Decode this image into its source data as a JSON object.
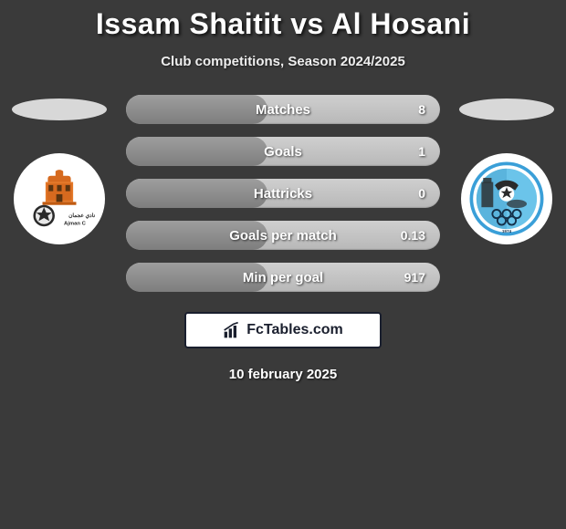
{
  "title": "Issam Shaitit vs Al Hosani",
  "subtitle": "Club competitions, Season 2024/2025",
  "date": "10 february 2025",
  "footer_brand": "FcTables.com",
  "colors": {
    "page_bg": "#3a3a3a",
    "title_color": "#ffffff",
    "pill_bg_light": "#cfcfcf",
    "pill_bg_dark": "#b8b8b8",
    "pill_fill_light": "#9e9e9e",
    "pill_fill_dark": "#7e7e7e",
    "oval_bg": "#d8d8d8",
    "footer_border": "#1a1f2e",
    "footer_bg": "#ffffff"
  },
  "stats": [
    {
      "label": "Matches",
      "value": "8",
      "fill_pct": 45
    },
    {
      "label": "Goals",
      "value": "1",
      "fill_pct": 45
    },
    {
      "label": "Hattricks",
      "value": "0",
      "fill_pct": 45
    },
    {
      "label": "Goals per match",
      "value": "0.13",
      "fill_pct": 45
    },
    {
      "label": "Min per goal",
      "value": "917",
      "fill_pct": 45
    }
  ],
  "left_badge": {
    "name": "ajman-club-badge"
  },
  "right_badge": {
    "name": "baniyas-club-badge"
  }
}
